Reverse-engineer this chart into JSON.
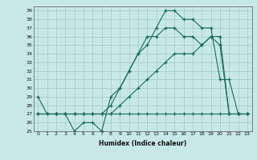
{
  "xlabel": "Humidex (Indice chaleur)",
  "bg_color": "#c8e8e8",
  "grid_color": "#a0c8c8",
  "line_color": "#1a6b5a",
  "ylim": [
    25,
    39.5
  ],
  "xlim": [
    -0.5,
    23.5
  ],
  "yticks": [
    25,
    26,
    27,
    28,
    29,
    30,
    31,
    32,
    33,
    34,
    35,
    36,
    37,
    38,
    39
  ],
  "xticks": [
    0,
    1,
    2,
    3,
    4,
    5,
    6,
    7,
    8,
    9,
    10,
    11,
    12,
    13,
    14,
    15,
    16,
    17,
    18,
    19,
    20,
    21,
    22,
    23
  ],
  "line1_x": [
    0,
    1,
    2,
    3,
    4,
    5,
    6,
    7,
    8,
    9,
    10,
    11,
    12,
    13,
    14,
    15,
    16,
    17,
    18,
    19,
    20,
    21,
    22,
    23
  ],
  "line1_y": [
    29,
    27,
    27,
    27,
    25,
    26,
    26,
    25,
    29,
    30,
    32,
    34,
    36,
    36,
    37,
    37,
    36,
    36,
    35,
    36,
    35,
    27,
    27,
    27
  ],
  "line2_x": [
    0,
    1,
    2,
    3,
    4,
    5,
    6,
    7,
    8,
    9,
    10,
    11,
    12,
    13,
    14,
    15,
    16,
    17,
    18,
    19,
    20,
    21,
    22,
    23
  ],
  "line2_y": [
    27,
    27,
    27,
    27,
    27,
    27,
    27,
    27,
    27,
    28,
    29,
    30,
    31,
    32,
    33,
    34,
    34,
    34,
    35,
    36,
    36,
    27,
    27,
    27
  ],
  "line3_x": [
    0,
    2,
    3,
    4,
    5,
    6,
    7,
    8,
    9,
    10,
    11,
    12,
    13,
    14,
    15,
    16,
    17,
    18,
    19,
    20,
    21,
    22,
    23
  ],
  "line3_y": [
    27,
    27,
    27,
    27,
    27,
    27,
    27,
    28,
    30,
    32,
    34,
    35,
    37,
    39,
    39,
    38,
    38,
    37,
    37,
    31,
    31,
    27,
    27
  ],
  "line4_x": [
    0,
    1,
    2,
    3,
    4,
    5,
    6,
    7,
    8,
    9,
    10,
    11,
    12,
    13,
    14,
    15,
    16,
    17,
    18,
    19,
    20,
    21,
    22,
    23
  ],
  "line4_y": [
    27,
    27,
    27,
    27,
    27,
    27,
    27,
    27,
    27,
    27,
    27,
    27,
    27,
    27,
    27,
    27,
    27,
    27,
    27,
    27,
    27,
    27,
    27,
    27
  ]
}
